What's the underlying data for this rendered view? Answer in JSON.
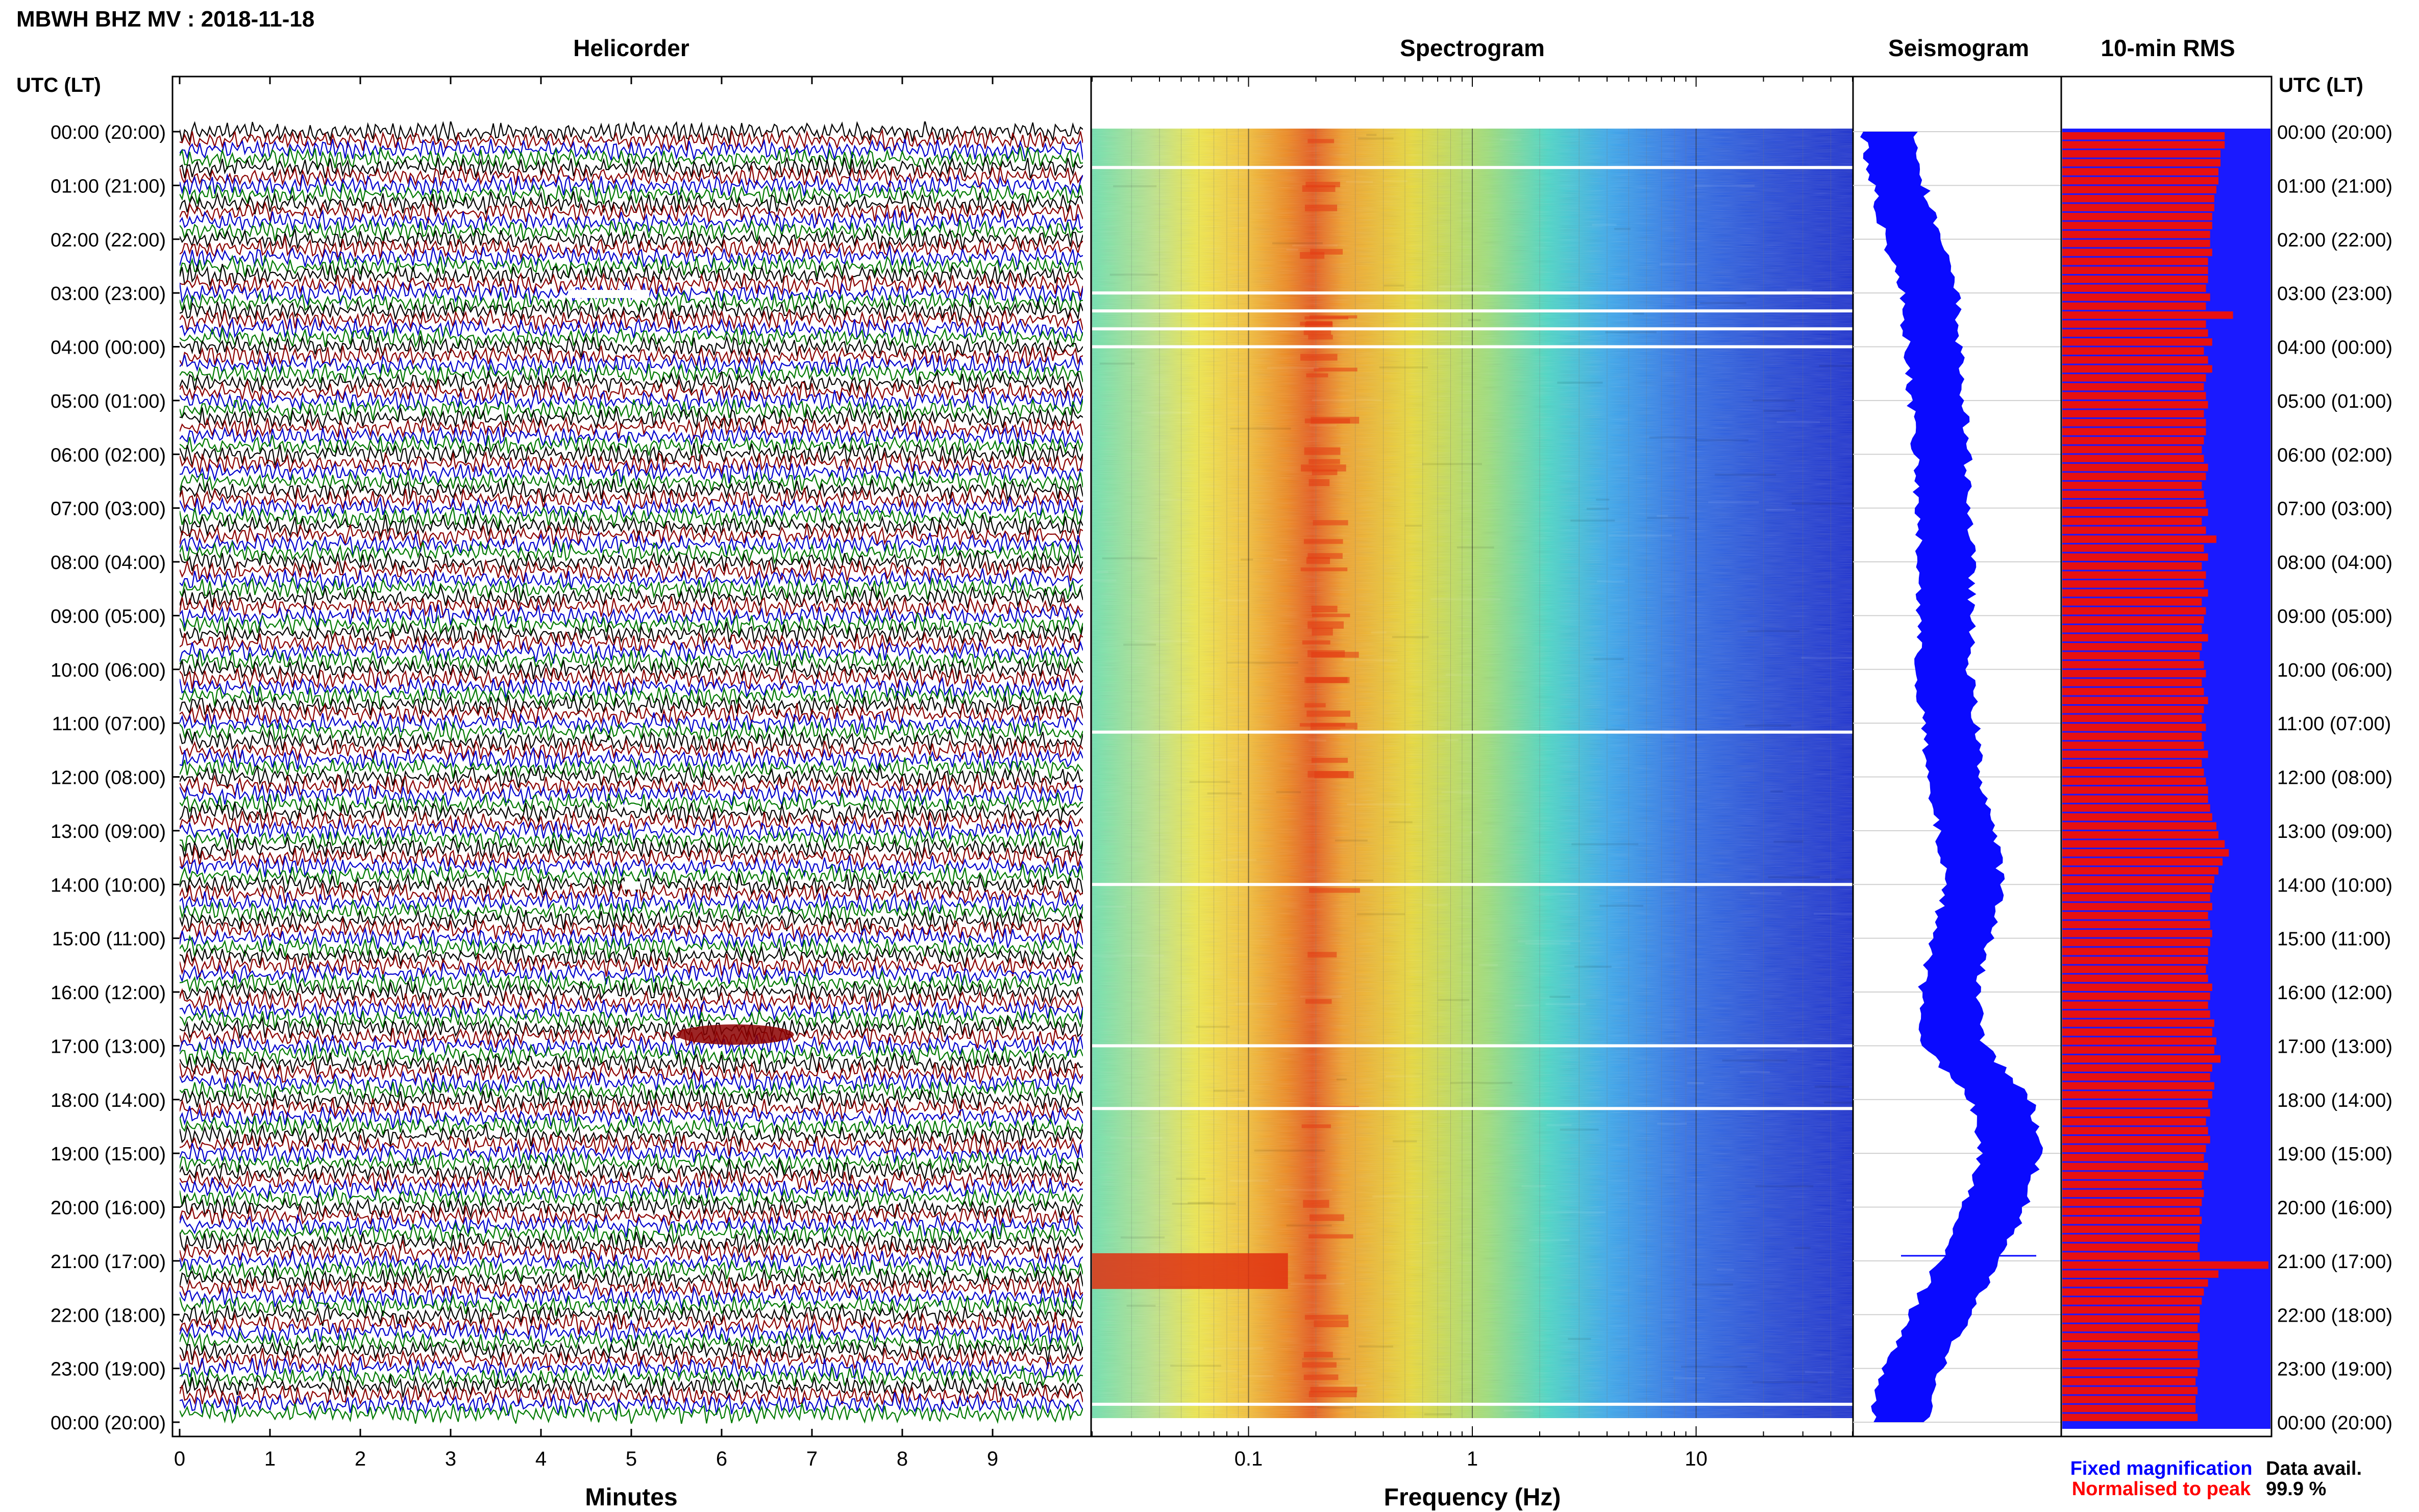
{
  "header": {
    "station_title": "MBWH BHZ MV : 2018-11-18",
    "left_axis_title": "UTC (LT)",
    "right_axis_title": "UTC (LT)"
  },
  "panels": {
    "helicorder": {
      "title": "Helicorder",
      "xlabel": "Minutes"
    },
    "spectrogram": {
      "title": "Spectrogram",
      "xlabel": "Frequency (Hz)"
    },
    "seismogram": {
      "title": "Seismogram"
    },
    "rms": {
      "title": "10-min RMS"
    }
  },
  "legend": {
    "fixed_label": "Fixed magnification",
    "normalised_label": "Normalised to peak",
    "data_avail_label": "Data avail.",
    "data_avail_value": "99.9 %"
  },
  "colors": {
    "trace_cycle": [
      "#000000",
      "#8b0000",
      "#0000cd",
      "#007a00"
    ],
    "fixed": "#0000ff",
    "normalised": "#ff0000",
    "rms_background": "#1a1aff",
    "rms_bar": "#e81010",
    "seismogram": "#0a0aff"
  },
  "chart_data": [
    {
      "type": "line",
      "panel": "Helicorder",
      "xlabel": "Minutes",
      "x_ticks": [
        "0",
        "1",
        "2",
        "3",
        "4",
        "5",
        "6",
        "7",
        "8",
        "9"
      ],
      "xlim": [
        0,
        10
      ],
      "y_tick_labels": [
        "00:00 (20:00)",
        "01:00 (21:00)",
        "02:00 (22:00)",
        "03:00 (23:00)",
        "04:00 (00:00)",
        "05:00 (01:00)",
        "06:00 (02:00)",
        "07:00 (03:00)",
        "08:00 (04:00)",
        "09:00 (05:00)",
        "10:00 (06:00)",
        "11:00 (07:00)",
        "12:00 (08:00)",
        "13:00 (09:00)",
        "14:00 (10:00)",
        "15:00 (11:00)",
        "16:00 (12:00)",
        "17:00 (13:00)",
        "18:00 (14:00)",
        "19:00 (15:00)",
        "20:00 (16:00)",
        "21:00 (17:00)",
        "22:00 (18:00)",
        "23:00 (19:00)",
        "00:00 (20:00)"
      ],
      "trace_interval_minutes": 10,
      "trace_count": 144,
      "events": [
        {
          "time_utc": "03:00",
          "minutes": [
            4.3,
            5.2
          ],
          "note": "gap"
        },
        {
          "time_utc": "14:00",
          "minutes": [
            4.9,
            5.1
          ],
          "note": "gap"
        },
        {
          "time_utc": "17:00",
          "minutes": [
            5.5,
            6.8
          ],
          "note": "high-amplitude signal"
        }
      ]
    },
    {
      "type": "heatmap",
      "panel": "Spectrogram",
      "xlabel": "Frequency (Hz)",
      "x_scale": "log",
      "xlim": [
        0.02,
        50
      ],
      "x_ticks": [
        "0.1",
        "1",
        "10"
      ],
      "gap_times_utc": [
        "00:40",
        "03:00",
        "03:20",
        "03:40",
        "04:00",
        "11:10",
        "14:00",
        "17:00",
        "18:10",
        "23:40"
      ],
      "event_time_utc": "21:00",
      "event_freq_range_hz": [
        0.02,
        0.15
      ],
      "peak_frequency_hz": 0.22
    },
    {
      "type": "area",
      "panel": "Seismogram",
      "series_color": "#0a0aff",
      "envelope_shift": [
        0,
        0.05,
        0.12,
        0.2,
        0.22,
        0.24,
        0.26,
        0.27,
        0.28,
        0.28,
        0.27,
        0.3,
        0.32,
        0.38,
        0.42,
        0.36,
        0.3,
        0.32,
        0.55,
        0.6,
        0.52,
        0.4,
        0.25,
        0.12,
        0.05
      ],
      "envelope_halfwidth": [
        0.26,
        0.26,
        0.27,
        0.27,
        0.26,
        0.26,
        0.26,
        0.26,
        0.26,
        0.26,
        0.26,
        0.26,
        0.27,
        0.28,
        0.28,
        0.28,
        0.28,
        0.3,
        0.3,
        0.3,
        0.3,
        0.3,
        0.3,
        0.28,
        0.27
      ],
      "spike_time_utc": "21:00"
    },
    {
      "type": "bar",
      "panel": "10-min RMS",
      "bar_count": 144,
      "normalised_rms": [
        0.78,
        0.78,
        0.76,
        0.76,
        0.75,
        0.75,
        0.74,
        0.73,
        0.73,
        0.72,
        0.72,
        0.71,
        0.71,
        0.72,
        0.7,
        0.7,
        0.7,
        0.69,
        0.71,
        0.69,
        0.82,
        0.69,
        0.7,
        0.72,
        0.68,
        0.7,
        0.72,
        0.69,
        0.68,
        0.69,
        0.7,
        0.68,
        0.69,
        0.69,
        0.68,
        0.67,
        0.68,
        0.7,
        0.69,
        0.67,
        0.68,
        0.69,
        0.7,
        0.67,
        0.69,
        0.74,
        0.68,
        0.7,
        0.67,
        0.69,
        0.68,
        0.7,
        0.67,
        0.69,
        0.68,
        0.67,
        0.7,
        0.67,
        0.66,
        0.68,
        0.69,
        0.67,
        0.68,
        0.7,
        0.68,
        0.67,
        0.69,
        0.67,
        0.68,
        0.7,
        0.67,
        0.68,
        0.69,
        0.7,
        0.7,
        0.71,
        0.72,
        0.74,
        0.75,
        0.78,
        0.8,
        0.77,
        0.75,
        0.73,
        0.72,
        0.71,
        0.72,
        0.7,
        0.71,
        0.72,
        0.71,
        0.7,
        0.7,
        0.69,
        0.7,
        0.72,
        0.71,
        0.7,
        0.71,
        0.73,
        0.72,
        0.74,
        0.73,
        0.76,
        0.72,
        0.71,
        0.73,
        0.72,
        0.7,
        0.71,
        0.69,
        0.7,
        0.71,
        0.69,
        0.68,
        0.7,
        0.68,
        0.67,
        0.68,
        0.67,
        0.66,
        0.67,
        0.66,
        0.66,
        0.65,
        0.66,
        0.99,
        0.75,
        0.7,
        0.68,
        0.67,
        0.66,
        0.66,
        0.65,
        0.66,
        0.65,
        0.65,
        0.66,
        0.65,
        0.64,
        0.65,
        0.64,
        0.64,
        0.65
      ],
      "max_index": 126
    }
  ]
}
